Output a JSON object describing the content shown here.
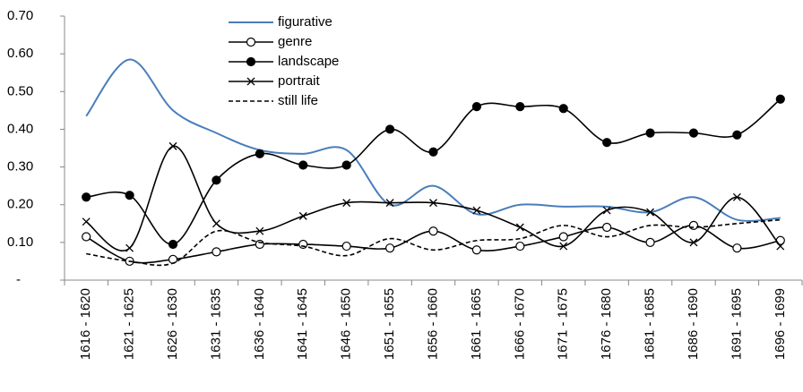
{
  "chart_data": {
    "type": "line",
    "categories": [
      "1616 - 1620",
      "1621 - 1625",
      "1626 - 1630",
      "1631 - 1635",
      "1636 - 1640",
      "1641 - 1645",
      "1646 - 1650",
      "1651 - 1655",
      "1656 - 1660",
      "1661 - 1665",
      "1666 - 1670",
      "1671 - 1675",
      "1676 - 1680",
      "1681 - 1685",
      "1686 - 1690",
      "1691 - 1695",
      "1696 - 1699"
    ],
    "series": [
      {
        "name": "figurative",
        "color": "#4a7ebb",
        "marker": "none",
        "dash": false,
        "values": [
          0.435,
          0.585,
          0.45,
          0.39,
          0.345,
          0.335,
          0.345,
          0.2,
          0.25,
          0.175,
          0.2,
          0.195,
          0.195,
          0.18,
          0.22,
          0.16,
          0.165
        ]
      },
      {
        "name": "genre",
        "color": "#000000",
        "marker": "circle-open",
        "dash": false,
        "values": [
          0.115,
          0.05,
          0.055,
          0.075,
          0.095,
          0.095,
          0.09,
          0.085,
          0.13,
          0.08,
          0.09,
          0.115,
          0.14,
          0.1,
          0.145,
          0.085,
          0.105
        ]
      },
      {
        "name": "landscape",
        "color": "#000000",
        "marker": "circle-filled",
        "dash": false,
        "values": [
          0.22,
          0.225,
          0.095,
          0.265,
          0.335,
          0.305,
          0.305,
          0.4,
          0.34,
          0.46,
          0.46,
          0.455,
          0.365,
          0.39,
          0.39,
          0.385,
          0.48
        ]
      },
      {
        "name": "portrait",
        "color": "#000000",
        "marker": "x",
        "dash": false,
        "values": [
          0.155,
          0.085,
          0.355,
          0.15,
          0.13,
          0.17,
          0.205,
          0.205,
          0.205,
          0.185,
          0.14,
          0.09,
          0.185,
          0.18,
          0.1,
          0.22,
          0.09
        ]
      },
      {
        "name": "still life",
        "color": "#000000",
        "marker": "none",
        "dash": true,
        "values": [
          0.07,
          0.05,
          0.045,
          0.13,
          0.1,
          0.09,
          0.065,
          0.11,
          0.08,
          0.105,
          0.11,
          0.145,
          0.115,
          0.145,
          0.14,
          0.15,
          0.16
        ]
      }
    ],
    "ylim": [
      0,
      0.7
    ],
    "yticks": [
      {
        "value": 0,
        "label": "-"
      },
      {
        "value": 0.1,
        "label": "0.10"
      },
      {
        "value": 0.2,
        "label": "0.20"
      },
      {
        "value": 0.3,
        "label": "0.30"
      },
      {
        "value": 0.4,
        "label": "0.40"
      },
      {
        "value": 0.5,
        "label": "0.50"
      },
      {
        "value": 0.6,
        "label": "0.60"
      },
      {
        "value": 0.7,
        "label": "0.70"
      }
    ],
    "grid": false,
    "smooth": true,
    "legend": "top"
  }
}
